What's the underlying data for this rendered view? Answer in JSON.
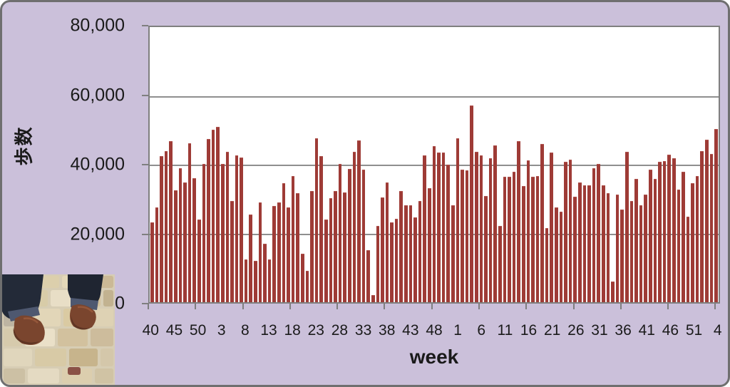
{
  "chart": {
    "y_axis": {
      "title": "歩数",
      "tick_labels": [
        "80,000",
        "60,000",
        "40,000",
        "20,000",
        "0"
      ],
      "max": 80000,
      "interval": 20000
    },
    "x_axis": {
      "title": "week",
      "tick_labels": [
        "40",
        "45",
        "50",
        "3",
        "8",
        "13",
        "18",
        "23",
        "28",
        "33",
        "38",
        "43",
        "48",
        "1",
        "6",
        "11",
        "16",
        "21",
        "26",
        "31",
        "36",
        "41",
        "46",
        "51",
        "4"
      ],
      "label_every": 5,
      "minor_tick_every": 10
    }
  },
  "chart_data": {
    "type": "bar",
    "title": "",
    "xlabel": "week",
    "ylabel": "歩数",
    "ylim": [
      0,
      80000
    ],
    "grid": true,
    "bar_color": "#9E3B36",
    "x_weeks": [
      40,
      41,
      42,
      43,
      44,
      45,
      46,
      47,
      48,
      49,
      50,
      51,
      52,
      1,
      2,
      3,
      4,
      5,
      6,
      7,
      8,
      9,
      10,
      11,
      12,
      13,
      14,
      15,
      16,
      17,
      18,
      19,
      20,
      21,
      22,
      23,
      24,
      25,
      26,
      27,
      28,
      29,
      30,
      31,
      32,
      33,
      34,
      35,
      36,
      37,
      38,
      39,
      40,
      41,
      42,
      43,
      44,
      45,
      46,
      47,
      48,
      49,
      50,
      51,
      52,
      1,
      2,
      3,
      4,
      5,
      6,
      7,
      8,
      9,
      10,
      11,
      12,
      13,
      14,
      15,
      16,
      17,
      18,
      19,
      20,
      21,
      22,
      23,
      24,
      25,
      26,
      27,
      28,
      29,
      30,
      31,
      32,
      33,
      34,
      35,
      36,
      37,
      38,
      39,
      40,
      41,
      42,
      43,
      44,
      45,
      46,
      47,
      48,
      49,
      50,
      51,
      52,
      1,
      2,
      3,
      4
    ],
    "values": [
      23200,
      27600,
      42500,
      44000,
      46800,
      32500,
      38900,
      34800,
      46300,
      36100,
      24100,
      40200,
      47400,
      50200,
      50900,
      40200,
      43700,
      29500,
      42600,
      42100,
      12400,
      25400,
      12100,
      29000,
      16900,
      12400,
      27900,
      29000,
      34600,
      27600,
      36600,
      31700,
      14100,
      9200,
      32300,
      47700,
      42500,
      24100,
      30200,
      32400,
      40300,
      31900,
      38800,
      43800,
      47100,
      38500,
      15200,
      2100,
      22200,
      30400,
      34800,
      23300,
      24300,
      32300,
      28200,
      28200,
      24600,
      29400,
      42700,
      33200,
      45300,
      43600,
      43600,
      40100,
      28100,
      47700,
      38500,
      38300,
      57300,
      43800,
      42800,
      30800,
      41900,
      45700,
      22100,
      36500,
      36500,
      37900,
      46800,
      33800,
      41200,
      36400,
      36700,
      46000,
      21600,
      43600,
      27600,
      26400,
      40800,
      41400,
      30700,
      34900,
      34000,
      33900,
      38900,
      40300,
      34000,
      31800,
      6100,
      31200,
      26900,
      43800,
      29400,
      35900,
      28100,
      31200,
      38600,
      35800,
      40800,
      41000,
      42900,
      41800,
      32800,
      38000,
      24800,
      34600,
      36600,
      44000,
      47200,
      43100,
      50400
    ]
  },
  "colors": {
    "bar": "#9E3B36",
    "background": "#CBC0DA",
    "plot_background": "#FFFFFF",
    "gridline": "#8F8F8F",
    "border": "#6F6F6F",
    "text": "#1A1A1A"
  },
  "photo": {
    "description": "two feet in dark jeans and brown shoes standing on beige cobblestone pavement"
  }
}
